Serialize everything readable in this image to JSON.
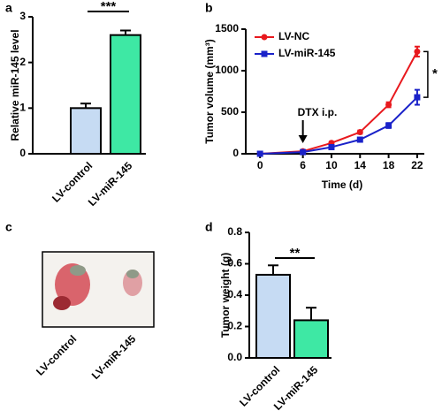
{
  "chart_data": [
    {
      "type": "bar",
      "panel": "a",
      "ylabel": "Relative miR-145 level",
      "categories": [
        "LV-control",
        "LV-miR-145"
      ],
      "values": [
        1.0,
        2.6
      ],
      "errors": [
        0.1,
        0.1
      ],
      "colors": [
        "#c6dbf3",
        "#3ee8a4"
      ],
      "ylim": [
        0,
        3
      ],
      "yticks": [
        0,
        1,
        2,
        3
      ],
      "significance": "***"
    },
    {
      "type": "line",
      "panel": "b",
      "xlabel": "Time (d)",
      "ylabel": "Tumor volume (mm³)",
      "x": [
        0,
        6,
        10,
        14,
        18,
        22
      ],
      "xlim": [
        -2,
        23
      ],
      "xticks": [
        0,
        6,
        10,
        14,
        18,
        22
      ],
      "ylim": [
        0,
        1500
      ],
      "yticks": [
        0,
        500,
        1000,
        1500
      ],
      "series": [
        {
          "name": "LV-NC",
          "color": "#e8191e",
          "values": [
            0,
            30,
            130,
            260,
            590,
            1230
          ],
          "errors": [
            5,
            8,
            15,
            20,
            30,
            60
          ]
        },
        {
          "name": "LV-miR-145",
          "color": "#1a22c9",
          "values": [
            0,
            20,
            80,
            170,
            340,
            680
          ],
          "errors": [
            5,
            6,
            10,
            15,
            30,
            90
          ]
        }
      ],
      "annotation": "DTX i.p.",
      "significance": "*"
    },
    {
      "type": "image",
      "panel": "c",
      "categories": [
        "LV-control",
        "LV-miR-145"
      ]
    },
    {
      "type": "bar",
      "panel": "d",
      "ylabel": "Tumor weight (g)",
      "categories": [
        "LV-control",
        "LV-miR-145"
      ],
      "values": [
        0.53,
        0.24
      ],
      "errors": [
        0.06,
        0.08
      ],
      "colors": [
        "#c6dbf3",
        "#3ee8a4"
      ],
      "ylim": [
        0,
        0.8
      ],
      "yticks": [
        {
          "value": 0,
          "label": "0.0"
        },
        0.2,
        0.4,
        0.6,
        0.8
      ],
      "significance": "**"
    }
  ]
}
